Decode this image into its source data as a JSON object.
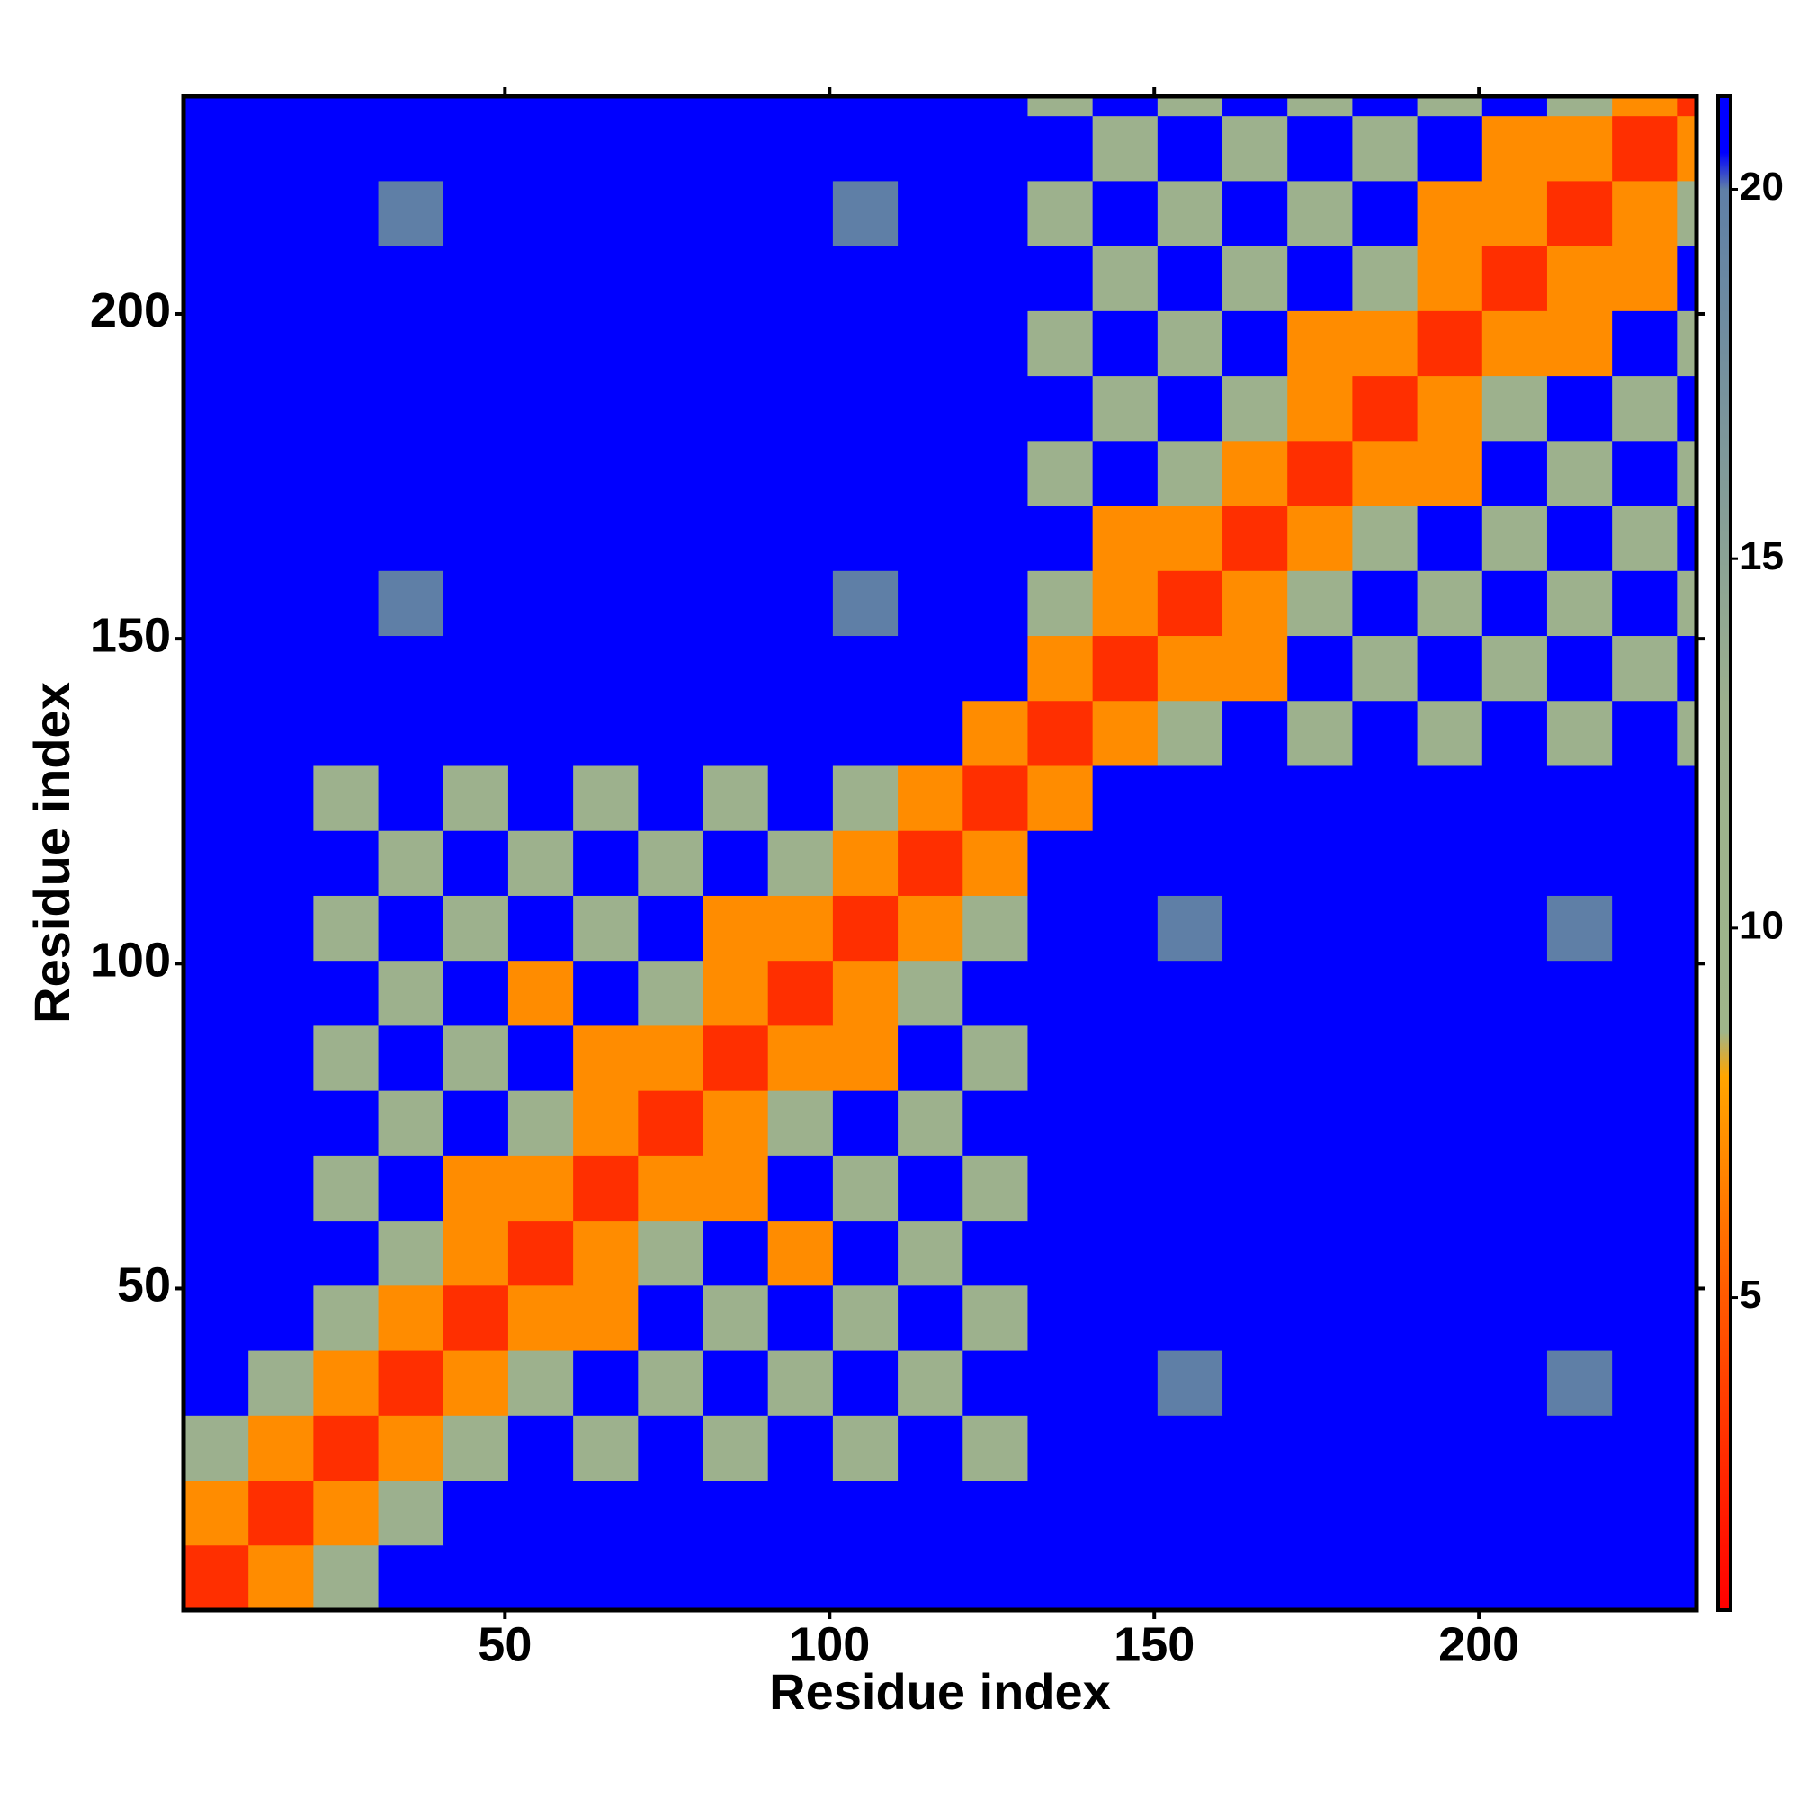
{
  "chart_data": {
    "type": "heatmap",
    "x_label": "Residue index",
    "y_label": "Residue index",
    "xlim": [
      0.5,
      233.5
    ],
    "ylim": [
      0.5,
      233.5
    ],
    "xticks": [
      50,
      100,
      150,
      200
    ],
    "yticks": [
      50,
      100,
      150,
      200
    ],
    "xbins": [
      0.5,
      10.5,
      20.5,
      30.5,
      40.5,
      50.5,
      60.5,
      70.5,
      80.5,
      90.5,
      100.5,
      110.5,
      120.5,
      130.5,
      140.5,
      150.5,
      160.5,
      170.5,
      180.5,
      190.5,
      200.5,
      210.5,
      220.5,
      230.5,
      233.5
    ],
    "ybins": [
      0.5,
      10.5,
      20.5,
      30.5,
      40.5,
      50.5,
      60.5,
      70.5,
      80.5,
      90.5,
      100.5,
      110.5,
      120.5,
      130.5,
      140.5,
      150.5,
      160.5,
      170.5,
      180.5,
      190.5,
      200.5,
      210.5,
      220.5,
      230.5,
      233.5
    ],
    "z": [
      [
        3,
        7,
        13,
        21,
        21,
        21,
        21,
        21,
        21,
        21,
        21,
        21,
        21,
        21,
        21,
        21,
        21,
        21,
        21,
        21,
        21,
        21,
        21,
        21
      ],
      [
        7,
        3,
        7,
        13,
        21,
        21,
        21,
        21,
        21,
        21,
        21,
        21,
        21,
        21,
        21,
        21,
        21,
        21,
        21,
        21,
        21,
        21,
        21,
        21
      ],
      [
        13,
        7,
        3,
        7,
        12,
        21,
        12,
        21,
        12,
        21,
        12,
        21,
        12,
        21,
        21,
        21,
        21,
        21,
        21,
        21,
        21,
        21,
        21,
        21
      ],
      [
        21,
        13,
        7,
        3,
        7,
        12,
        21,
        12,
        21,
        12,
        21,
        12,
        21,
        21,
        21,
        20,
        21,
        21,
        21,
        21,
        21,
        20,
        21,
        21
      ],
      [
        21,
        21,
        12,
        7,
        3,
        7,
        7,
        21,
        12,
        21,
        12,
        21,
        12,
        21,
        21,
        21,
        21,
        21,
        21,
        21,
        21,
        21,
        21,
        21
      ],
      [
        21,
        21,
        21,
        12,
        7,
        3,
        7,
        12,
        21,
        7,
        21,
        12,
        21,
        21,
        21,
        21,
        21,
        21,
        21,
        21,
        21,
        21,
        21,
        21
      ],
      [
        21,
        21,
        12,
        21,
        7,
        7,
        3,
        7,
        7,
        21,
        12,
        21,
        12,
        21,
        21,
        21,
        21,
        21,
        21,
        21,
        21,
        21,
        21,
        21
      ],
      [
        21,
        21,
        21,
        12,
        21,
        12,
        7,
        3,
        7,
        12,
        21,
        12,
        21,
        21,
        21,
        21,
        21,
        21,
        21,
        21,
        21,
        21,
        21,
        21
      ],
      [
        21,
        21,
        12,
        21,
        12,
        21,
        7,
        7,
        3,
        7,
        7,
        21,
        12,
        21,
        21,
        21,
        21,
        21,
        21,
        21,
        21,
        21,
        21,
        21
      ],
      [
        21,
        21,
        21,
        12,
        21,
        7,
        21,
        12,
        7,
        3,
        7,
        12,
        21,
        21,
        21,
        21,
        21,
        21,
        21,
        21,
        21,
        21,
        21,
        21
      ],
      [
        21,
        21,
        12,
        21,
        12,
        21,
        12,
        21,
        7,
        7,
        3,
        7,
        12,
        21,
        21,
        20,
        21,
        21,
        21,
        21,
        21,
        20,
        21,
        21
      ],
      [
        21,
        21,
        21,
        12,
        21,
        12,
        21,
        12,
        21,
        12,
        7,
        3,
        7,
        21,
        21,
        21,
        21,
        21,
        21,
        21,
        21,
        21,
        21,
        21
      ],
      [
        21,
        21,
        12,
        21,
        12,
        21,
        12,
        21,
        12,
        21,
        12,
        7,
        3,
        7,
        21,
        21,
        21,
        21,
        21,
        21,
        21,
        21,
        21,
        21
      ],
      [
        21,
        21,
        21,
        21,
        21,
        21,
        21,
        21,
        21,
        21,
        21,
        21,
        7,
        3,
        7,
        12,
        21,
        12,
        21,
        12,
        21,
        12,
        21,
        12
      ],
      [
        21,
        21,
        21,
        21,
        21,
        21,
        21,
        21,
        21,
        21,
        21,
        21,
        21,
        7,
        3,
        7,
        7,
        21,
        12,
        21,
        12,
        21,
        12,
        21
      ],
      [
        21,
        21,
        21,
        20,
        21,
        21,
        21,
        21,
        21,
        21,
        20,
        21,
        21,
        12,
        7,
        3,
        7,
        12,
        21,
        12,
        21,
        12,
        21,
        12
      ],
      [
        21,
        21,
        21,
        21,
        21,
        21,
        21,
        21,
        21,
        21,
        21,
        21,
        21,
        21,
        7,
        7,
        3,
        7,
        12,
        21,
        12,
        21,
        12,
        21
      ],
      [
        21,
        21,
        21,
        21,
        21,
        21,
        21,
        21,
        21,
        21,
        21,
        21,
        21,
        12,
        21,
        12,
        7,
        3,
        7,
        7,
        21,
        12,
        21,
        12
      ],
      [
        21,
        21,
        21,
        21,
        21,
        21,
        21,
        21,
        21,
        21,
        21,
        21,
        21,
        21,
        12,
        21,
        12,
        7,
        3,
        7,
        12,
        21,
        12,
        21
      ],
      [
        21,
        21,
        21,
        21,
        21,
        21,
        21,
        21,
        21,
        21,
        21,
        21,
        21,
        12,
        21,
        12,
        21,
        7,
        7,
        3,
        7,
        7,
        21,
        12
      ],
      [
        21,
        21,
        21,
        21,
        21,
        21,
        21,
        21,
        21,
        21,
        21,
        21,
        21,
        21,
        12,
        21,
        12,
        21,
        12,
        7,
        3,
        7,
        7,
        21
      ],
      [
        21,
        21,
        21,
        20,
        21,
        21,
        21,
        21,
        21,
        21,
        20,
        21,
        21,
        12,
        21,
        12,
        21,
        12,
        21,
        7,
        7,
        3,
        7,
        12
      ],
      [
        21,
        21,
        21,
        21,
        21,
        21,
        21,
        21,
        21,
        21,
        21,
        21,
        21,
        21,
        12,
        21,
        12,
        21,
        12,
        21,
        7,
        7,
        3,
        7
      ],
      [
        21,
        21,
        21,
        21,
        21,
        21,
        21,
        21,
        21,
        21,
        21,
        21,
        21,
        12,
        21,
        12,
        21,
        12,
        21,
        12,
        21,
        12,
        7,
        3
      ]
    ],
    "clim": [
      0.77,
      21.26
    ],
    "cticks": [
      5,
      10,
      15,
      20
    ],
    "colorscale": [
      [
        0.77,
        "#ff0000"
      ],
      [
        5,
        "#ff5a00"
      ],
      [
        8,
        "#ffa500"
      ],
      [
        8.6,
        "#9fb58a"
      ],
      [
        13,
        "#9cb08e"
      ],
      [
        20,
        "#5f7fa6"
      ],
      [
        20.5,
        "#0000ff"
      ],
      [
        21.26,
        "#0000ff"
      ]
    ]
  }
}
